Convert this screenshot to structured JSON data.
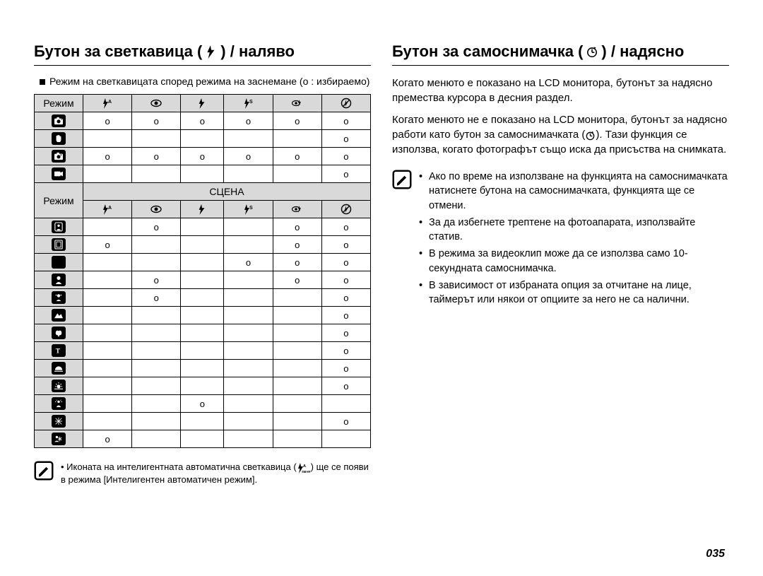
{
  "left": {
    "title_pre": "Бутон за светкавица (",
    "title_post": ") / наляво",
    "subhead": "Режим на светкавицата според режима на заснемане  (o : избираемо)",
    "mode_label": "Режим",
    "scene_label": "СЦЕНА",
    "col_icons": [
      "flash-auto",
      "eye",
      "flash",
      "flash-s",
      "flash-edit",
      "flash-off"
    ],
    "rows_top": [
      {
        "icon": "cam-p",
        "v": [
          "o",
          "o",
          "o",
          "o",
          "o",
          "o"
        ]
      },
      {
        "icon": "hand",
        "v": [
          "",
          "",
          "",
          "",
          "",
          "o"
        ]
      },
      {
        "icon": "cam-dual",
        "v": [
          "o",
          "o",
          "o",
          "o",
          "o",
          "o"
        ]
      },
      {
        "icon": "movie",
        "v": [
          "",
          "",
          "",
          "",
          "",
          "o"
        ]
      }
    ],
    "rows_scene": [
      {
        "icon": "portrait-guide",
        "v": [
          "",
          "o",
          "",
          "",
          "o",
          "o"
        ]
      },
      {
        "icon": "frame",
        "v": [
          "o",
          "",
          "",
          "",
          "o",
          "o"
        ]
      },
      {
        "icon": "night",
        "v": [
          "",
          "",
          "",
          "o",
          "o",
          "o"
        ]
      },
      {
        "icon": "portrait",
        "v": [
          "",
          "o",
          "",
          "",
          "o",
          "o"
        ]
      },
      {
        "icon": "children",
        "v": [
          "",
          "o",
          "",
          "",
          "",
          "o"
        ]
      },
      {
        "icon": "landscape",
        "v": [
          "",
          "",
          "",
          "",
          "",
          "o"
        ]
      },
      {
        "icon": "closeup",
        "v": [
          "",
          "",
          "",
          "",
          "",
          "o"
        ]
      },
      {
        "icon": "text",
        "v": [
          "",
          "",
          "",
          "",
          "",
          "o"
        ]
      },
      {
        "icon": "sunset",
        "v": [
          "",
          "",
          "",
          "",
          "",
          "o"
        ]
      },
      {
        "icon": "dawn",
        "v": [
          "",
          "",
          "",
          "",
          "",
          "o"
        ]
      },
      {
        "icon": "backlight",
        "v": [
          "",
          "",
          "o",
          "",
          "",
          ""
        ]
      },
      {
        "icon": "fireworks",
        "v": [
          "",
          "",
          "",
          "",
          "",
          "o"
        ]
      },
      {
        "icon": "beach-snow",
        "v": [
          "o",
          "",
          "",
          "",
          "",
          ""
        ]
      }
    ],
    "footnote_pre": "Иконата на интелигентната автоматична светкавица (",
    "footnote_post": ") ще се появи в режима [Интелигентен автоматичен режим]."
  },
  "right": {
    "title_pre": "Бутон за самоснимачка (",
    "title_post": ") / надясно",
    "para1": "Когато менюто е показано на LCD монитора, бутонът за надясно премества курсора в десния раздел.",
    "para2_pre": "Когато менюто не е показано на LCD монитора, бутонът за надясно работи като бутон за самоснимачката (",
    "para2_post": "). Тази функция се използва, когато фотографът също иска да присъства на снимката.",
    "note_items": [
      "Ако по време на използване на функцията на самоснимачката натиснете бутона на самоснимачката, функцията ще се отмени.",
      "За да избегнете трептене на фотоапарата, използвайте статив.",
      "В режима за видеоклип може да се използва само 10-секундната самоснимачка.",
      "В зависимост от избраната опция за отчитане на лице, таймерът или някои от опциите за него не са налични."
    ]
  },
  "page_number": "035"
}
